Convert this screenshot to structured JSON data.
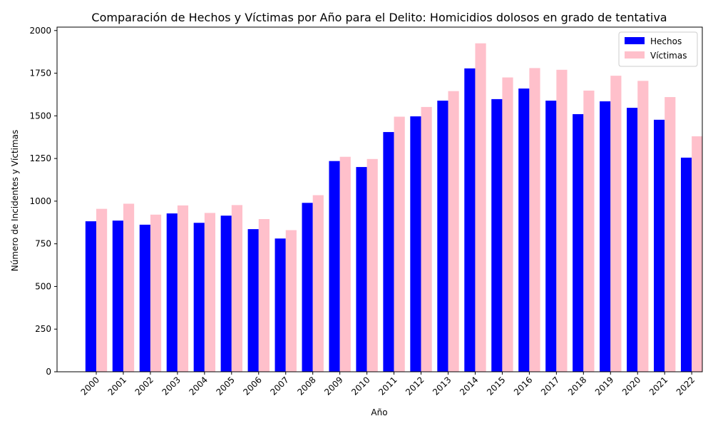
{
  "chart_data": {
    "type": "bar",
    "title": "Comparación de Hechos y Víctimas por Año para el Delito: Homicidios dolosos en grado de tentativa",
    "xlabel": "Año",
    "ylabel": "Número de Incidentes y Víctimas",
    "categories": [
      "2000",
      "2001",
      "2002",
      "2003",
      "2004",
      "2005",
      "2006",
      "2007",
      "2008",
      "2009",
      "2010",
      "2011",
      "2012",
      "2013",
      "2014",
      "2015",
      "2016",
      "2017",
      "2018",
      "2019",
      "2020",
      "2021",
      "2022"
    ],
    "series": [
      {
        "name": "Hechos",
        "color": "#0000ff",
        "values": [
          882,
          886,
          862,
          928,
          873,
          915,
          836,
          781,
          990,
          1235,
          1200,
          1405,
          1497,
          1589,
          1778,
          1598,
          1660,
          1589,
          1510,
          1585,
          1547,
          1477,
          1255
        ]
      },
      {
        "name": "Víctimas",
        "color": "#ffc0cb",
        "values": [
          955,
          985,
          921,
          975,
          931,
          977,
          895,
          830,
          1035,
          1260,
          1247,
          1495,
          1552,
          1645,
          1925,
          1725,
          1780,
          1770,
          1648,
          1735,
          1705,
          1610,
          1380
        ]
      }
    ],
    "ylim": [
      0,
      2020
    ],
    "yticks": [
      0,
      250,
      500,
      750,
      1000,
      1250,
      1500,
      1750,
      2000
    ],
    "ytick_labels": [
      "0",
      "250",
      "500",
      "750",
      "1000",
      "1250",
      "1500",
      "1750",
      "2000"
    ],
    "grid": false,
    "legend_position": "top-right",
    "xtick_rotation": 45
  }
}
